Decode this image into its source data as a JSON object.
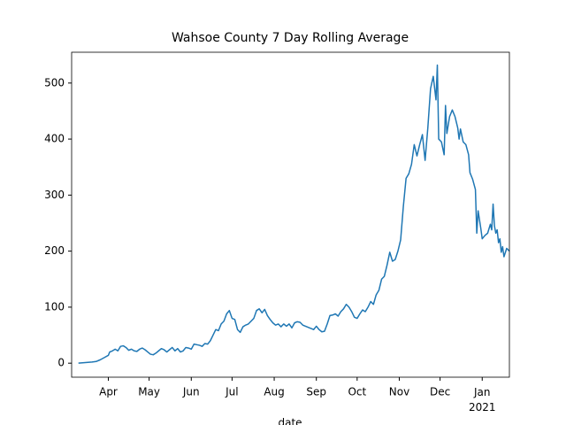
{
  "chart_data": {
    "type": "line",
    "title": "Wahsoe County 7 Day Rolling Average",
    "x_label": "date",
    "color": "#1f77b4",
    "x": [
      5,
      10,
      15,
      18,
      21,
      24,
      27,
      28,
      30,
      32,
      34,
      36,
      38,
      40,
      42,
      44,
      46,
      48,
      50,
      52,
      54,
      56,
      58,
      60,
      62,
      64,
      66,
      68,
      70,
      72,
      74,
      76,
      78,
      80,
      82,
      84,
      86,
      88,
      90,
      92,
      94,
      96,
      98,
      100,
      102,
      104,
      106,
      108,
      110,
      112,
      114,
      116,
      118,
      120,
      122,
      124,
      126,
      128,
      130,
      132,
      134,
      136,
      138,
      140,
      142,
      144,
      146,
      148,
      150,
      152,
      154,
      156,
      158,
      160,
      162,
      164,
      166,
      168,
      170,
      172,
      174,
      176,
      178,
      180,
      182,
      184,
      186,
      188,
      190,
      192,
      194,
      196,
      198,
      200,
      202,
      204,
      206,
      208,
      210,
      212,
      214,
      216,
      218,
      220,
      222,
      224,
      226,
      228,
      230,
      232,
      234,
      236,
      238,
      240,
      242,
      244,
      246,
      248,
      250,
      252,
      254,
      256,
      258,
      260,
      262,
      264,
      266,
      268,
      269,
      270,
      272,
      274,
      275,
      276,
      278,
      280,
      282,
      284,
      285,
      286,
      288,
      290,
      292,
      293,
      295,
      297,
      298,
      299,
      301,
      302,
      304,
      306,
      308,
      309,
      310,
      311,
      312,
      313,
      314,
      315,
      316,
      317,
      318,
      320,
      322
    ],
    "values": [
      0,
      1,
      2,
      3,
      6,
      10,
      14,
      20,
      22,
      25,
      22,
      30,
      31,
      28,
      23,
      25,
      22,
      21,
      25,
      27,
      24,
      20,
      16,
      15,
      18,
      22,
      26,
      24,
      20,
      24,
      28,
      22,
      26,
      20,
      22,
      28,
      27,
      25,
      34,
      33,
      32,
      30,
      35,
      34,
      40,
      50,
      60,
      58,
      70,
      75,
      88,
      94,
      80,
      78,
      60,
      55,
      65,
      68,
      70,
      75,
      80,
      94,
      97,
      90,
      96,
      85,
      78,
      72,
      68,
      70,
      65,
      70,
      66,
      70,
      63,
      72,
      74,
      73,
      68,
      66,
      64,
      62,
      60,
      66,
      60,
      56,
      57,
      70,
      85,
      86,
      88,
      84,
      92,
      97,
      105,
      100,
      92,
      82,
      80,
      88,
      95,
      92,
      100,
      110,
      105,
      122,
      130,
      150,
      155,
      175,
      198,
      182,
      185,
      200,
      220,
      280,
      330,
      338,
      355,
      390,
      370,
      390,
      408,
      362,
      420,
      490,
      512,
      470,
      532,
      400,
      395,
      372,
      460,
      410,
      440,
      452,
      440,
      420,
      400,
      418,
      395,
      390,
      372,
      340,
      328,
      310,
      232,
      272,
      240,
      222,
      228,
      232,
      248,
      238,
      284,
      245,
      232,
      238,
      215,
      222,
      198,
      208,
      190,
      205,
      200
    ],
    "xlim": [
      0,
      322
    ],
    "xticks": [
      {
        "value": 27,
        "label": "Apr"
      },
      {
        "value": 57,
        "label": "May"
      },
      {
        "value": 88,
        "label": "Jun"
      },
      {
        "value": 118,
        "label": "Jul"
      },
      {
        "value": 149,
        "label": "Aug"
      },
      {
        "value": 180,
        "label": "Sep"
      },
      {
        "value": 210,
        "label": "Oct"
      },
      {
        "value": 241,
        "label": "Nov"
      },
      {
        "value": 271,
        "label": "Dec"
      },
      {
        "value": 302,
        "label": "Jan\n2021"
      }
    ],
    "ylim": [
      -25,
      555
    ],
    "yticks": [
      0,
      100,
      200,
      300,
      400,
      500
    ]
  }
}
